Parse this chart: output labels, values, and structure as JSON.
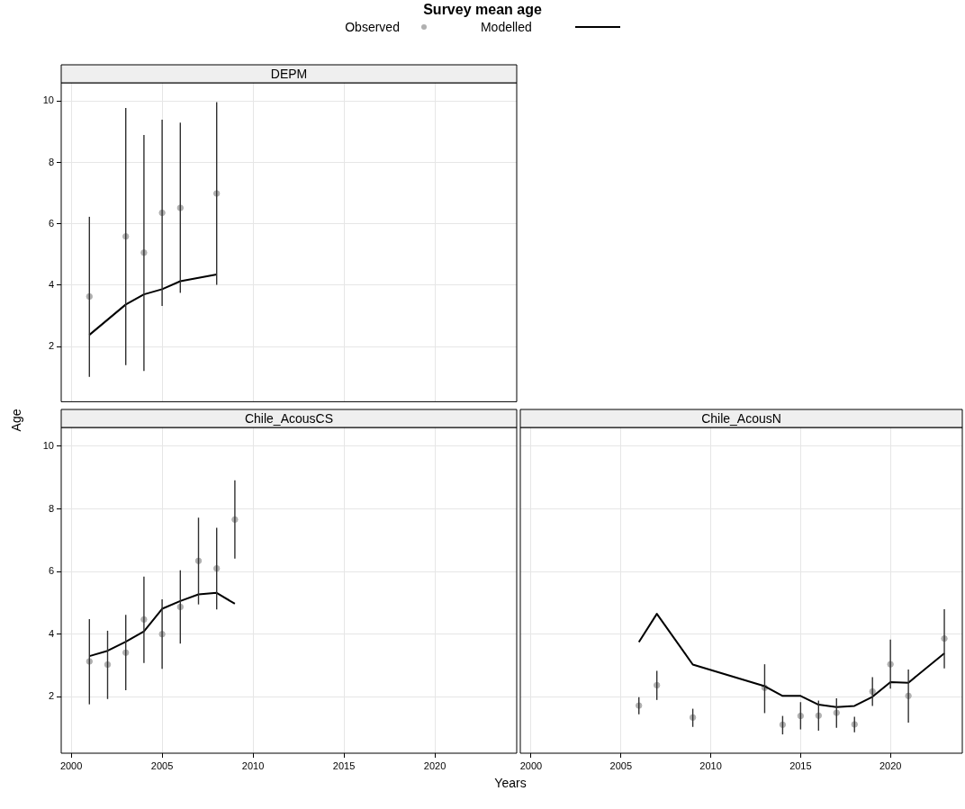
{
  "chart_data": [
    {
      "type": "scatter",
      "title": "DEPM",
      "legend_title": "Survey mean age",
      "legend": "top",
      "grid": true,
      "tick_labels": "y",
      "x": [
        2001,
        2003,
        2004,
        2005,
        2006,
        2008
      ],
      "xlim": [
        1999.45,
        2024.5
      ],
      "xticks": [
        2000,
        2005,
        2010,
        2015,
        2020
      ],
      "ylim": [
        0.2,
        10.6
      ],
      "yticks": [
        2,
        4,
        6,
        8,
        10
      ],
      "series": [
        {
          "name": "Observed",
          "marker": "circle",
          "color": "#b0b0b0",
          "values": [
            3.63,
            5.59,
            5.06,
            6.36,
            6.52,
            6.99
          ],
          "errors": [
            [
              1.01,
              6.23
            ],
            [
              1.39,
              9.78
            ],
            [
              1.2,
              8.9
            ],
            [
              3.32,
              9.4
            ],
            [
              3.75,
              9.3
            ],
            [
              4.01,
              9.97
            ]
          ]
        },
        {
          "name": "Modelled",
          "marker": "none",
          "type": "line",
          "color": "#000000",
          "values": [
            2.38,
            3.37,
            3.7,
            3.87,
            4.13,
            4.35
          ]
        }
      ]
    },
    {
      "type": "scatter",
      "title": "Chile_AcousCS",
      "xlabel": "Years",
      "ylabel": "Age",
      "grid": true,
      "x": [
        2001,
        2002,
        2003,
        2004,
        2005,
        2006,
        2007,
        2008,
        2009
      ],
      "xlim": [
        1999.45,
        2024.5
      ],
      "xticks": [
        2000,
        2005,
        2010,
        2015,
        2020
      ],
      "ylim": [
        0.2,
        10.6
      ],
      "yticks": [
        2,
        4,
        6,
        8,
        10
      ],
      "series": [
        {
          "marker": "circle",
          "color": "#b0b0b0",
          "values": [
            3.13,
            3.03,
            3.41,
            4.47,
            4.0,
            4.87,
            6.34,
            6.1,
            7.66
          ],
          "errors": [
            [
              1.76,
              4.48
            ],
            [
              1.93,
              4.11
            ],
            [
              2.21,
              4.62
            ],
            [
              3.08,
              5.84
            ],
            [
              2.89,
              5.11
            ],
            [
              3.7,
              6.04
            ],
            [
              4.95,
              7.72
            ],
            [
              4.79,
              7.4
            ],
            [
              6.41,
              8.91
            ]
          ]
        },
        {
          "marker": "none",
          "type": "line",
          "color": "#000000",
          "values": [
            3.3,
            3.47,
            3.76,
            4.09,
            4.81,
            5.06,
            5.27,
            5.32,
            4.97
          ]
        }
      ]
    },
    {
      "type": "scatter",
      "title": "Chile_AcousN",
      "grid": true,
      "tick_labels": "x",
      "x": [
        2006,
        2007,
        2009,
        2013,
        2014,
        2015,
        2016,
        2017,
        2018,
        2019,
        2020,
        2021,
        2023
      ],
      "xlim": [
        1999.4,
        2024.0
      ],
      "xticks": [
        2000,
        2005,
        2010,
        2015,
        2020
      ],
      "ylim": [
        0.2,
        10.6
      ],
      "yticks": [
        2,
        4,
        6,
        8,
        10
      ],
      "series": [
        {
          "marker": "circle",
          "color": "#b0b0b0",
          "values": [
            1.72,
            2.37,
            1.34,
            2.29,
            1.11,
            1.39,
            1.4,
            1.49,
            1.12,
            2.17,
            3.04,
            2.03,
            3.86
          ],
          "errors": [
            [
              1.44,
              1.99
            ],
            [
              1.9,
              2.83
            ],
            [
              1.04,
              1.62
            ],
            [
              1.48,
              3.04
            ],
            [
              0.8,
              1.39
            ],
            [
              0.96,
              1.83
            ],
            [
              0.92,
              1.88
            ],
            [
              1.01,
              1.95
            ],
            [
              0.87,
              1.36
            ],
            [
              1.71,
              2.63
            ],
            [
              2.26,
              3.83
            ],
            [
              1.18,
              2.87
            ],
            [
              2.91,
              4.8
            ]
          ]
        },
        {
          "marker": "none",
          "type": "line",
          "color": "#000000",
          "values": [
            3.75,
            4.65,
            3.03,
            2.34,
            2.03,
            2.03,
            1.75,
            1.67,
            1.71,
            2.0,
            2.47,
            2.45,
            3.39
          ]
        }
      ]
    }
  ]
}
